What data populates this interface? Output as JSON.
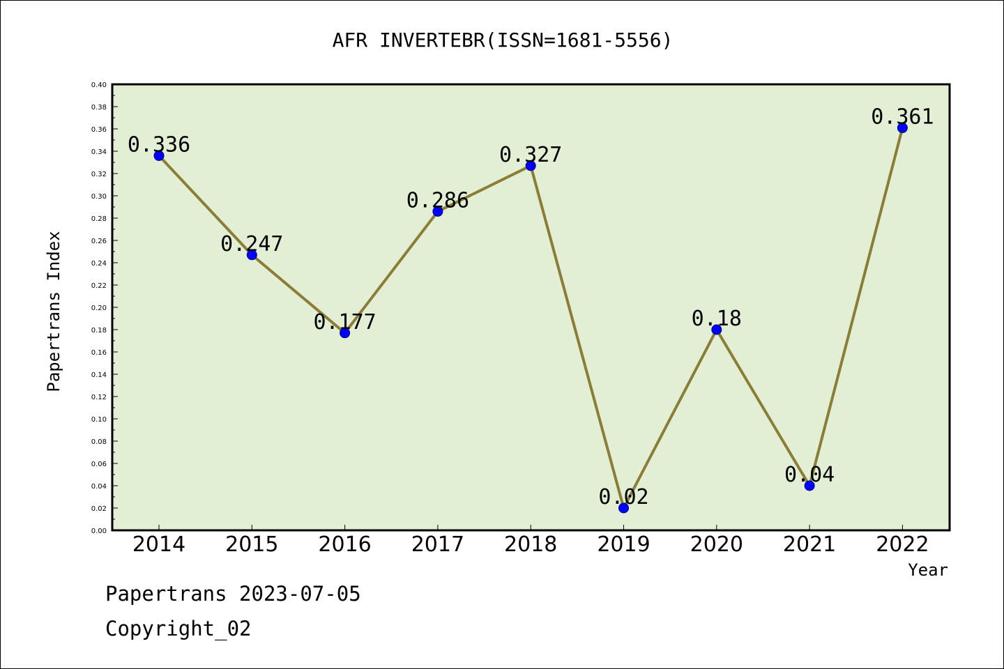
{
  "colors": {
    "plot_background": "#e2efd5",
    "line": "#8b7d36",
    "marker": "#0000ff",
    "marker_edge": "#000080",
    "axis": "#000000"
  },
  "footer": {
    "date_line": "Papertrans 2023-07-05",
    "copyright_line": "Copyright_02"
  },
  "chart_data": {
    "type": "line",
    "title": "AFR INVERTEBR(ISSN=1681-5556)",
    "xlabel": "Year",
    "ylabel": "Papertrans Index",
    "categories": [
      "2014",
      "2015",
      "2016",
      "2017",
      "2018",
      "2019",
      "2020",
      "2021",
      "2022"
    ],
    "series": [
      {
        "values": [
          0.336,
          0.247,
          0.177,
          0.286,
          0.327,
          0.02,
          0.18,
          0.04,
          0.361
        ],
        "labels": [
          "0.336",
          "0.247",
          "0.177",
          "0.286",
          "0.327",
          "0.02",
          "0.18",
          "0.04",
          "0.361"
        ]
      }
    ],
    "ylim": [
      0,
      0.4
    ],
    "y_ticks": [
      "0.00",
      "0.02",
      "0.04",
      "0.06",
      "0.08",
      "0.10",
      "0.12",
      "0.14",
      "0.16",
      "0.18",
      "0.20",
      "0.22",
      "0.24",
      "0.26",
      "0.28",
      "0.30",
      "0.32",
      "0.34",
      "0.36",
      "0.38",
      "0.40"
    ],
    "grid": false,
    "legend": "none",
    "marker": "circle"
  }
}
